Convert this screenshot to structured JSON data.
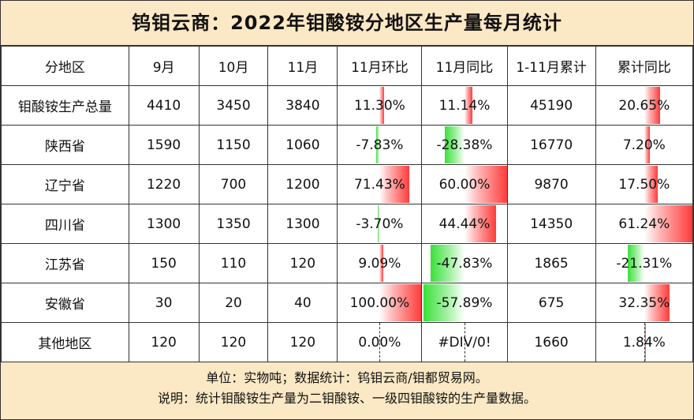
{
  "title": "钨钼云商：2022年钼酸铵分地区生产量每月统计",
  "headers": [
    "分地区",
    "9月",
    "10月",
    "11月",
    "11月环比",
    "11月同比",
    "1-11月累计",
    "累计同比"
  ],
  "rows": [
    {
      "region": "钼酸铵生产总量",
      "sep": "4410",
      "oct": "3450",
      "nov": "3840",
      "mom": "11.30%",
      "yoy": "11.14%",
      "cum": "45190",
      "cum_yoy": "20.65%"
    },
    {
      "region": "陕西省",
      "sep": "1590",
      "oct": "1150",
      "nov": "1060",
      "mom": "-7.83%",
      "yoy": "-28.38%",
      "cum": "16770",
      "cum_yoy": "7.20%"
    },
    {
      "region": "辽宁省",
      "sep": "1220",
      "oct": "700",
      "nov": "1200",
      "mom": "71.43%",
      "yoy": "60.00%",
      "cum": "9870",
      "cum_yoy": "17.50%"
    },
    {
      "region": "四川省",
      "sep": "1300",
      "oct": "1350",
      "nov": "1300",
      "mom": "-3.70%",
      "yoy": "44.44%",
      "cum": "14350",
      "cum_yoy": "61.24%"
    },
    {
      "region": "江苏省",
      "sep": "150",
      "oct": "110",
      "nov": "120",
      "mom": "9.09%",
      "yoy": "-47.83%",
      "cum": "1865",
      "cum_yoy": "-21.31%"
    },
    {
      "region": "安徽省",
      "sep": "30",
      "oct": "20",
      "nov": "40",
      "mom": "100.00%",
      "yoy": "-57.89%",
      "cum": "675",
      "cum_yoy": "32.35%"
    },
    {
      "region": "其他地区",
      "sep": "120",
      "oct": "120",
      "nov": "120",
      "mom": "0.00%",
      "yoy": "#DIV/0!",
      "cum": "1660",
      "cum_yoy": "1.84%"
    }
  ],
  "footer": {
    "line1": "单位：实物吨；数据统计：钨钼云商/钼都贸易网。",
    "line2": "说明：统计钼酸铵生产量为二钼酸铵、一级四钼酸铵的生产量数据。"
  },
  "colors": {
    "positive_bar": "#ff3b3b",
    "negative_bar": "#3be03b",
    "background": "#fbe8c4"
  }
}
